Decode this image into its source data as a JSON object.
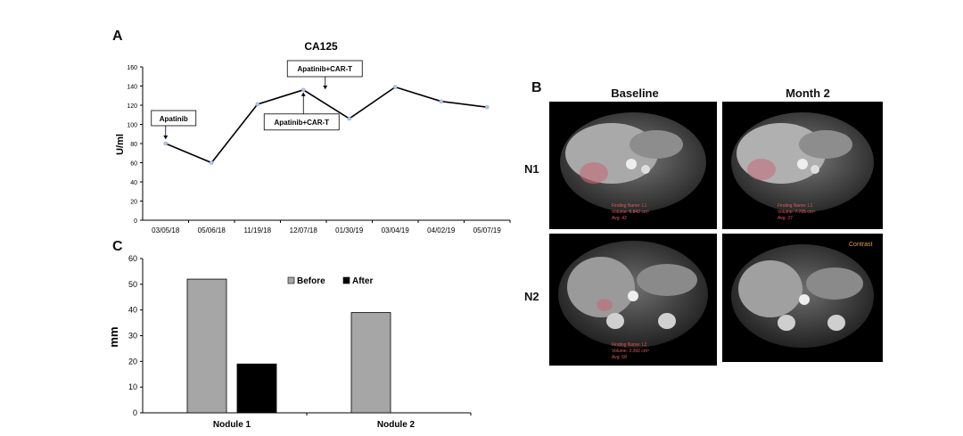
{
  "panel_labels": {
    "a": "A",
    "b": "B",
    "c": "C"
  },
  "colors": {
    "line": "#000000",
    "before_bar": "#a6a6a6",
    "after_bar": "#000000",
    "overlay_text": "#e05a5a",
    "contrast_text": "#e0a050"
  },
  "chart_data": [
    {
      "type": "line",
      "title": "CA125",
      "ylabel": "U/ml",
      "xlabel": "",
      "ylim": [
        0,
        160
      ],
      "yticks": [
        0,
        20,
        40,
        60,
        80,
        100,
        120,
        140,
        160
      ],
      "grid": false,
      "categories": [
        "03/05/18",
        "05/06/18",
        "11/19/18",
        "12/07/18",
        "01/30/19",
        "03/04/19",
        "04/02/19",
        "05/07/19"
      ],
      "values": [
        80,
        60,
        121,
        136,
        106,
        139,
        124,
        118
      ],
      "annotations": [
        {
          "text": "Apatinib",
          "point_index": 0
        },
        {
          "text": "Apatinib+CAR-T",
          "point_index": 3
        },
        {
          "text": "Apatinib+CAR-T",
          "point_index": 4
        }
      ]
    },
    {
      "type": "bar",
      "title": "",
      "ylabel": "mm",
      "xlabel": "",
      "ylim": [
        0,
        60
      ],
      "yticks": [
        0,
        10,
        20,
        30,
        40,
        50,
        60
      ],
      "grid": false,
      "legend": "top-right",
      "categories": [
        "Nodule 1",
        "Nodule 2"
      ],
      "series": [
        {
          "name": "Before",
          "values": [
            52,
            39
          ]
        },
        {
          "name": "After",
          "values": [
            19,
            0
          ]
        }
      ]
    }
  ],
  "images": {
    "columns": [
      "Baseline",
      "Month 2"
    ],
    "rows": [
      "N1",
      "N2"
    ],
    "overlays": {
      "n1_baseline": [
        "Finding Name: L1",
        "Volume: 6.842 cm³",
        "Avg: 42"
      ],
      "n1_month2": [
        "Finding Name: L1",
        "Volume: 7.725 cm³",
        "Avg: 37"
      ],
      "n2_baseline": [
        "Finding Name: L2",
        "Volume: 2.392 cm³",
        "Avg: 68"
      ],
      "n2_month2_label": "Contrast"
    }
  }
}
